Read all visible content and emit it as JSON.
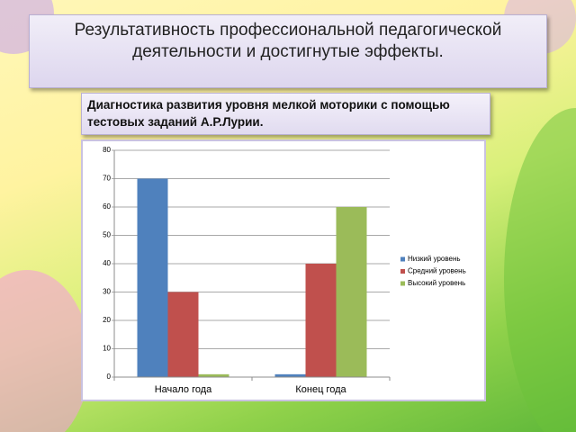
{
  "chart_data": {
    "type": "bar",
    "title": "Результативность профессиональной педагогической деятельности и достигнутые эффекты.",
    "subtitle": "Диагностика развития уровня мелкой моторики с помощью тестовых заданий А.Р.Лурии.",
    "categories": [
      "Начало года",
      "Конец года"
    ],
    "series": [
      {
        "name": "Низкий уровень",
        "color": "#4f81bd",
        "values": [
          70,
          1
        ]
      },
      {
        "name": "Средний уровень",
        "color": "#c0504d",
        "values": [
          30,
          40
        ]
      },
      {
        "name": "Высокий уровень",
        "color": "#9bbb59",
        "values": [
          1,
          60
        ]
      }
    ],
    "ylim": [
      0,
      80
    ],
    "yticks": [
      0,
      10,
      20,
      30,
      40,
      50,
      60,
      70,
      80
    ],
    "grid": true,
    "legend": "right"
  }
}
